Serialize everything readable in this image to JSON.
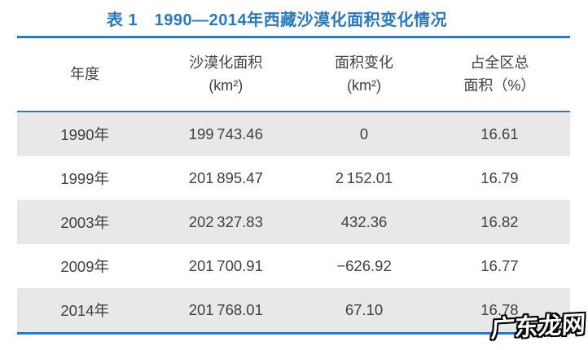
{
  "title": "表 1　1990—2014年西藏沙漠化面积变化情况",
  "table": {
    "headers": {
      "year": "年度",
      "area_line1": "沙漠化面积",
      "area_line2": "(km²)",
      "change_line1": "面积变化",
      "change_line2": "(km²)",
      "pct_line1": "占全区总",
      "pct_line2": "面积（%）"
    },
    "rows": [
      {
        "year": "1990年",
        "area": "199 743.46",
        "change": "0",
        "pct": "16.61"
      },
      {
        "year": "1999年",
        "area": "201 895.47",
        "change": "2 152.01",
        "pct": "16.79"
      },
      {
        "year": "2003年",
        "area": "202 327.83",
        "change": "432.36",
        "pct": "16.82"
      },
      {
        "year": "2009年",
        "area": "201 700.91",
        "change": "−626.92",
        "pct": "16.77"
      },
      {
        "year": "2014年",
        "area": "201 768.01",
        "change": "67.10",
        "pct": "16.78"
      }
    ]
  },
  "watermark": "广东龙网",
  "colors": {
    "accent_blue": "#2e79bc",
    "title_blue": "#2b79bd",
    "row_shade": "#e8e8e8",
    "body_text": "#3e3f41"
  },
  "chart_data": {
    "type": "table",
    "title": "表1 1990—2014年西藏沙漠化面积变化情况",
    "columns": [
      "年度",
      "沙漠化面积（km²）",
      "面积变化（km²）",
      "占全区总面积（%）"
    ],
    "rows": [
      [
        "1990年",
        199743.46,
        0,
        16.61
      ],
      [
        "1999年",
        201895.47,
        2152.01,
        16.79
      ],
      [
        "2003年",
        202327.83,
        432.36,
        16.82
      ],
      [
        "2009年",
        201700.91,
        -626.92,
        16.77
      ],
      [
        "2014年",
        201768.01,
        67.1,
        16.78
      ]
    ]
  }
}
